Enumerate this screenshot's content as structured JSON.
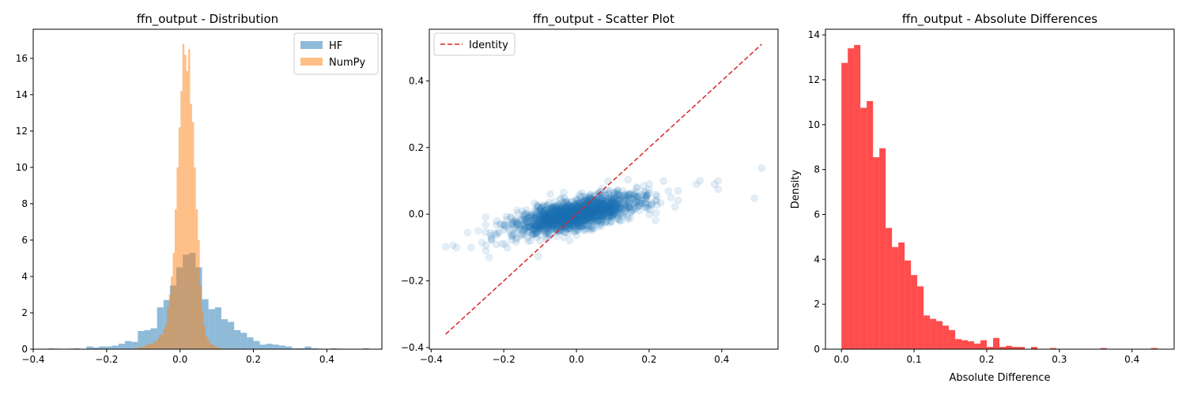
{
  "chart_data": [
    {
      "type": "histogram",
      "title": "ffn_output - Distribution",
      "xlabel": "",
      "ylabel": "",
      "xlim": [
        -0.4,
        0.55
      ],
      "ylim": [
        0,
        17.6
      ],
      "xticks": [
        -0.4,
        -0.2,
        0.0,
        0.2,
        0.4
      ],
      "yticks": [
        0,
        2,
        4,
        6,
        8,
        10,
        12,
        14,
        16
      ],
      "grid": false,
      "legend": {
        "position": "top-right",
        "entries": [
          "HF",
          "NumPy"
        ]
      },
      "series": [
        {
          "name": "HF",
          "color": "#1f77b4",
          "alpha": 0.5,
          "bin_start": -0.36,
          "bin_width": 0.0175,
          "density": [
            0.05,
            0.03,
            0.0,
            0.03,
            0.05,
            0.0,
            0.15,
            0.1,
            0.15,
            0.15,
            0.2,
            0.3,
            0.45,
            0.4,
            1.0,
            1.05,
            1.15,
            2.3,
            2.7,
            3.5,
            4.5,
            5.2,
            5.3,
            4.5,
            2.75,
            2.2,
            2.3,
            1.65,
            1.5,
            1.05,
            0.9,
            0.65,
            0.45,
            0.25,
            0.3,
            0.25,
            0.2,
            0.15,
            0.05,
            0.05,
            0.15,
            0.05,
            0.03,
            0.0,
            0.05,
            0.03,
            0.0,
            0.0,
            0.0,
            0.05
          ]
        },
        {
          "name": "NumPy",
          "color": "#ff7f0e",
          "alpha": 0.5,
          "bin_start": -0.13,
          "bin_width": 0.00525,
          "density": [
            0.03,
            0.05,
            0.05,
            0.1,
            0.15,
            0.1,
            0.15,
            0.2,
            0.3,
            0.3,
            0.3,
            0.4,
            0.45,
            0.6,
            0.8,
            0.8,
            1.1,
            1.4,
            2.3,
            3.0,
            4.0,
            5.3,
            7.7,
            10.0,
            12.2,
            14.2,
            16.8,
            16.2,
            15.3,
            16.5,
            13.5,
            12.5,
            10.0,
            7.7,
            6.0,
            3.5,
            2.1,
            1.3,
            0.7,
            0.55,
            0.3,
            0.25,
            0.2,
            0.12,
            0.1,
            0.05,
            0.05,
            0.03,
            0.03,
            0.03
          ]
        }
      ]
    },
    {
      "type": "scatter",
      "title": "ffn_output - Scatter Plot",
      "xlabel": "",
      "ylabel": "",
      "xlim": [
        -0.405,
        0.555
      ],
      "ylim": [
        -0.405,
        0.555
      ],
      "xticks": [
        -0.4,
        -0.2,
        0.0,
        0.2,
        0.4
      ],
      "yticks": [
        -0.4,
        -0.2,
        0.0,
        0.2,
        0.4
      ],
      "grid": false,
      "legend": {
        "position": "top-left",
        "entries": [
          "Identity"
        ]
      },
      "identity_line": {
        "label": "Identity",
        "color": "#d62728",
        "x": [
          -0.36,
          0.51
        ],
        "y": [
          -0.36,
          0.51
        ]
      },
      "scatter": {
        "color": "#1f77b4",
        "alpha": 0.12,
        "n_points": 1800,
        "seed": 7,
        "x_std": 0.085,
        "slope": 0.22,
        "noise_std": 0.022,
        "outliers": [
          [
            -0.36,
            -0.098
          ],
          [
            -0.34,
            -0.093
          ],
          [
            -0.33,
            -0.1
          ],
          [
            -0.3,
            -0.055
          ],
          [
            -0.29,
            -0.1
          ],
          [
            -0.27,
            -0.05
          ],
          [
            -0.26,
            -0.085
          ],
          [
            -0.25,
            -0.11
          ],
          [
            -0.24,
            -0.13
          ],
          [
            -0.22,
            -0.02
          ],
          [
            -0.2,
            -0.035
          ],
          [
            0.24,
            0.1
          ],
          [
            0.26,
            0.05
          ],
          [
            0.28,
            0.07
          ],
          [
            0.33,
            0.09
          ],
          [
            0.34,
            0.1
          ],
          [
            0.38,
            0.09
          ],
          [
            0.39,
            0.075
          ],
          [
            0.39,
            0.1
          ],
          [
            0.49,
            0.048
          ],
          [
            0.51,
            0.138
          ]
        ]
      }
    },
    {
      "type": "histogram",
      "title": "ffn_output - Absolute Differences",
      "xlabel": "Absolute Difference",
      "ylabel": "Density",
      "xlim": [
        -0.022,
        0.458
      ],
      "ylim": [
        0,
        14.25
      ],
      "xticks": [
        0.0,
        0.1,
        0.2,
        0.3,
        0.4
      ],
      "yticks": [
        0,
        2,
        4,
        6,
        8,
        10,
        12,
        14
      ],
      "grid": false,
      "series": [
        {
          "name": "",
          "color": "#ff0000",
          "alpha": 0.7,
          "bin_start": 0.0,
          "bin_width": 0.0087,
          "density": [
            12.75,
            13.4,
            13.55,
            10.75,
            11.05,
            8.55,
            8.95,
            5.4,
            4.55,
            4.75,
            3.95,
            3.3,
            2.8,
            1.5,
            1.35,
            1.25,
            1.05,
            0.85,
            0.45,
            0.4,
            0.35,
            0.25,
            0.4,
            0.1,
            0.5,
            0.1,
            0.15,
            0.1,
            0.1,
            0.0,
            0.1,
            0.0,
            0.0,
            0.05,
            0.0,
            0.0,
            0.0,
            0.0,
            0.0,
            0.0,
            0.0,
            0.05,
            0.0,
            0.0,
            0.0,
            0.0,
            0.0,
            0.0,
            0.0,
            0.05
          ]
        }
      ]
    }
  ]
}
